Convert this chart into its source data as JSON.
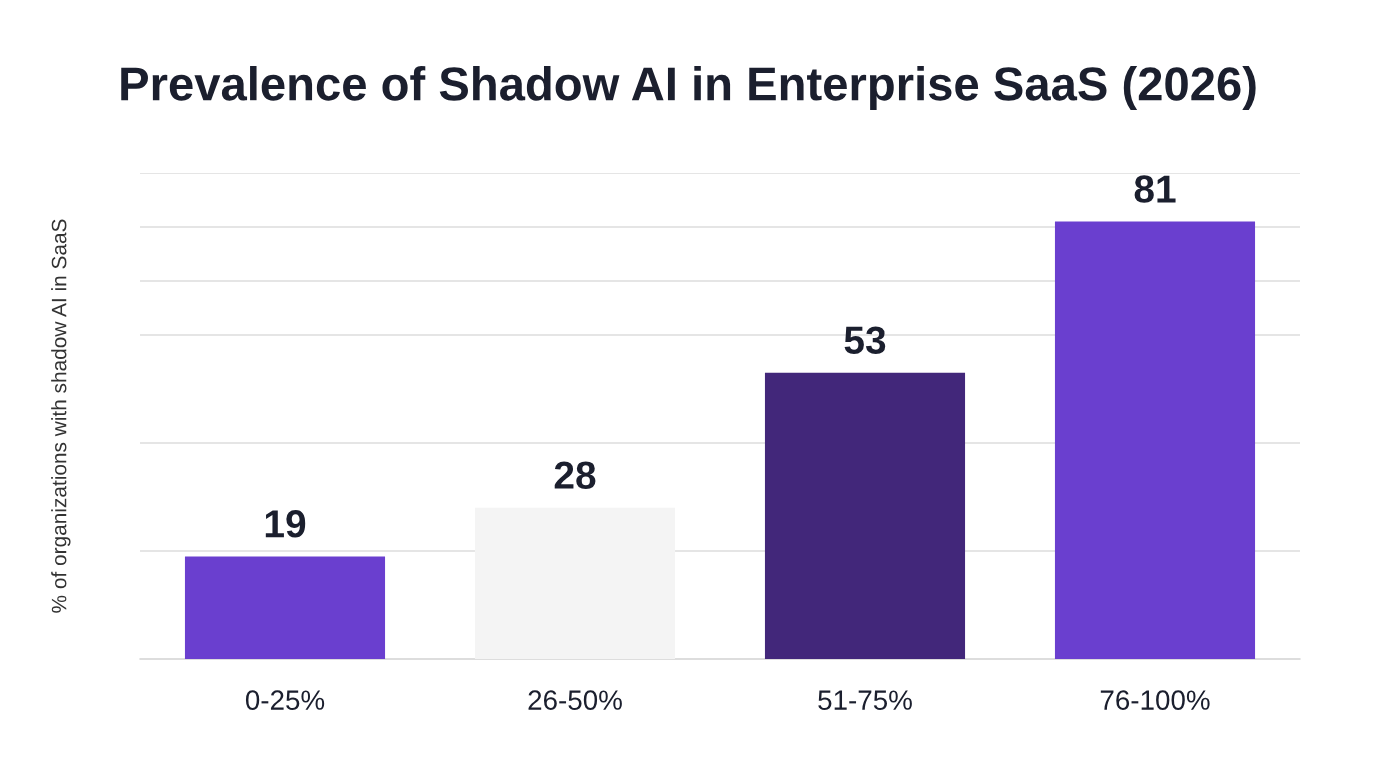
{
  "chart_data": {
    "type": "bar",
    "title": "Prevalence of Shadow AI in Enterprise SaaS (2026)",
    "ylabel": "% of organizations with shadow AI in SaaS",
    "categories": [
      "0-25%",
      "26-50%",
      "51-75%",
      "76-100%"
    ],
    "values": [
      19,
      28,
      53,
      81
    ],
    "colors": [
      "#6a3fcf",
      "#f4f4f4",
      "#42277a",
      "#6a3fcf"
    ],
    "data_labels": true,
    "ylim": [
      0,
      90
    ],
    "yticks": [
      {
        "value": 20,
        "label": null
      },
      {
        "value": 40,
        "label": null
      },
      {
        "value": 60,
        "label": null
      },
      {
        "value": 70,
        "label": null
      },
      {
        "value": 80,
        "label": null
      },
      {
        "value": 90,
        "label": null
      }
    ],
    "grid": "y",
    "tick_labels": "x"
  }
}
